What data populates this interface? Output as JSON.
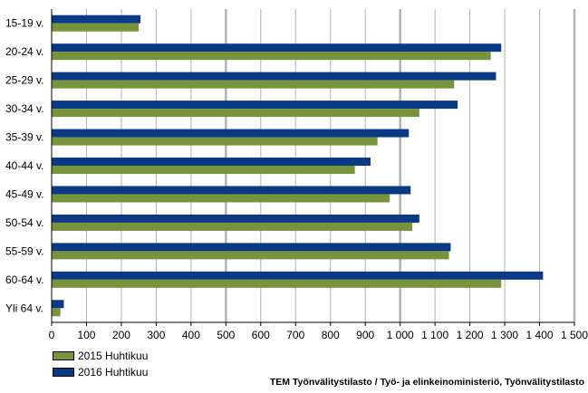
{
  "chart_data": {
    "type": "bar",
    "orientation": "horizontal",
    "categories": [
      "15-19 v.",
      "20-24 v.",
      "25-29 v.",
      "30-34 v.",
      "35-39 v.",
      "40-44 v.",
      "45-49 v.",
      "50-54 v.",
      "55-59 v.",
      "60-64 v.",
      "Yli 64 v."
    ],
    "series": [
      {
        "name": "2015 Huhtikuu",
        "color": "#77933c",
        "values": [
          250,
          1260,
          1155,
          1055,
          935,
          870,
          970,
          1035,
          1140,
          1290,
          25
        ]
      },
      {
        "name": "2016 Huhtikuu",
        "color": "#0b3a84",
        "values": [
          255,
          1290,
          1275,
          1165,
          1025,
          915,
          1030,
          1055,
          1145,
          1410,
          35
        ]
      }
    ],
    "xlim": [
      0,
      1500
    ],
    "xticks": [
      0,
      100,
      200,
      300,
      400,
      500,
      600,
      700,
      800,
      900,
      1000,
      1100,
      1200,
      1300,
      1400,
      1500
    ],
    "xtick_labels": [
      "0",
      "100",
      "200",
      "300",
      "400",
      "500",
      "600",
      "700",
      "800",
      "900",
      "1 000",
      "1 100",
      "1 200",
      "1 300",
      "1 400",
      "1 500"
    ],
    "grid": true,
    "legend_position": "bottom-left"
  },
  "source_text": "TEM Työnvälitystilasto / Työ- ja elinkeinoministeriö, Työnvälitystilasto"
}
